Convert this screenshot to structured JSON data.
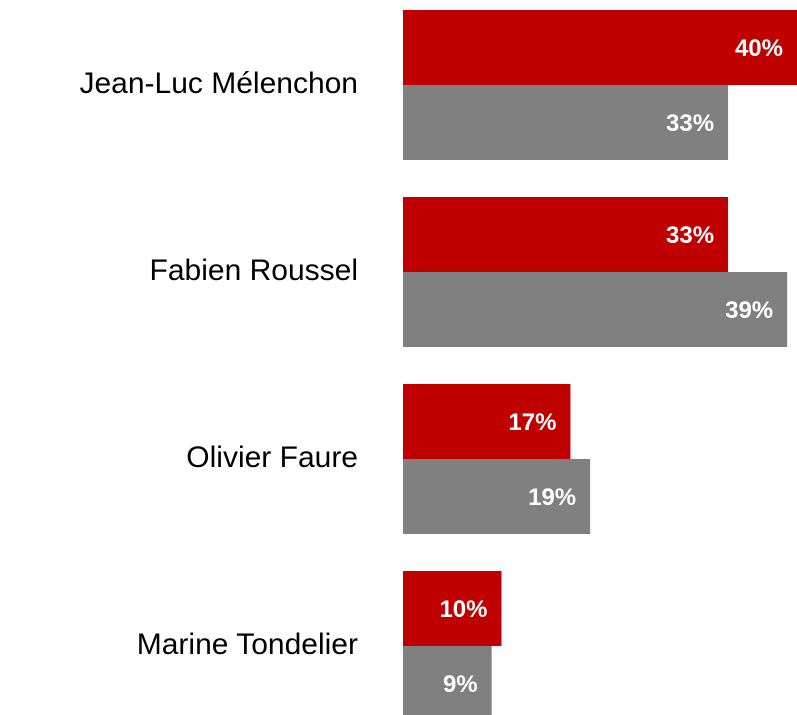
{
  "chart_data": {
    "type": "bar",
    "orientation": "horizontal",
    "categories": [
      "Jean-Luc Mélenchon",
      "Fabien Roussel",
      "Olivier Faure",
      "Marine Tondelier"
    ],
    "series": [
      {
        "color": "#c00000",
        "values": [
          40,
          33,
          17,
          10
        ],
        "value_labels": [
          "40%",
          "33%",
          "17%",
          "10%"
        ]
      },
      {
        "color": "#808080",
        "values": [
          33,
          39,
          19,
          9
        ],
        "value_labels": [
          "33%",
          "39%",
          "19%",
          "9%"
        ]
      }
    ]
  }
}
